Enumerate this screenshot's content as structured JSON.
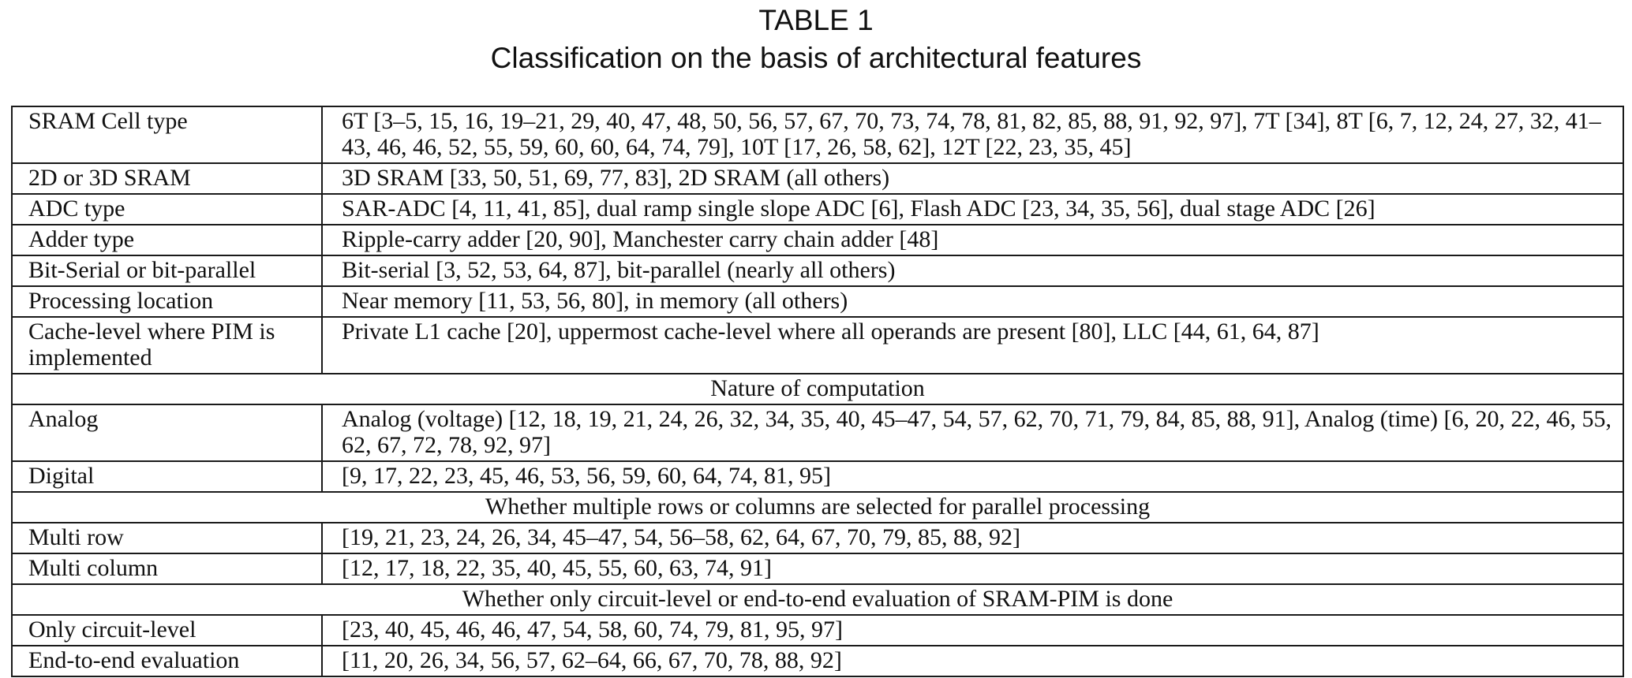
{
  "caption": {
    "label": "TABLE 1",
    "title": "Classification on the basis of architectural features"
  },
  "rows": [
    {
      "label": "SRAM Cell type",
      "value": "6T [3–5, 15, 16, 19–21, 29, 40, 47, 48, 50, 56, 57, 67, 70, 73, 74, 78, 81, 82, 85, 88, 91, 92, 97], 7T [34], 8T [6, 7, 12, 24, 27, 32, 41–43, 46, 46, 52, 55, 59, 60, 60, 64, 74, 79], 10T [17, 26, 58, 62], 12T [22, 23, 35, 45]"
    },
    {
      "label": "2D or 3D SRAM",
      "value": "3D SRAM [33, 50, 51, 69, 77, 83], 2D SRAM (all others)"
    },
    {
      "label": "ADC type",
      "value": "SAR-ADC [4, 11, 41, 85], dual ramp single slope ADC [6], Flash ADC [23, 34, 35, 56], dual stage ADC [26]"
    },
    {
      "label": "Adder type",
      "value": "Ripple-carry adder [20, 90], Manchester carry chain adder [48]"
    },
    {
      "label": "Bit-Serial or bit-parallel",
      "value": "Bit-serial [3, 52, 53, 64, 87], bit-parallel (nearly all others)"
    },
    {
      "label": "Processing location",
      "value": "Near memory [11, 53, 56, 80], in memory (all others)"
    },
    {
      "label": "Cache-level where PIM is implemented",
      "value": "Private L1 cache [20], uppermost cache-level where all operands are present [80], LLC [44, 61, 64, 87]"
    }
  ],
  "sections": [
    {
      "title": "Nature of computation",
      "rows": [
        {
          "label": "Analog",
          "value": "Analog (voltage) [12, 18, 19, 21, 24, 26, 32, 34, 35, 40, 45–47, 54, 57, 62, 70, 71, 79, 84, 85, 88, 91], Analog (time) [6, 20, 22, 46, 55, 62, 67, 72, 78, 92, 97]"
        },
        {
          "label": "Digital",
          "value": "[9, 17, 22, 23, 45, 46, 53, 56, 59, 60, 64, 74, 81, 95]"
        }
      ]
    },
    {
      "title": "Whether multiple rows or columns are selected for parallel processing",
      "rows": [
        {
          "label": "Multi row",
          "value": "[19, 21, 23, 24, 26, 34, 45–47, 54, 56–58, 62, 64, 67, 70, 79, 85, 88, 92]"
        },
        {
          "label": "Multi column",
          "value": "[12, 17, 18, 22, 35, 40, 45, 55, 60, 63, 74, 91]"
        }
      ]
    },
    {
      "title": "Whether only circuit-level or end-to-end evaluation of SRAM-PIM is done",
      "rows": [
        {
          "label": "Only circuit-level",
          "value": "[23, 40, 45, 46, 46, 47, 54, 58, 60, 74, 79, 81, 95, 97]"
        },
        {
          "label": "End-to-end evaluation",
          "value": "[11, 20, 26, 34, 56, 57, 62–64, 66, 67, 70, 78, 88, 92]"
        }
      ]
    }
  ]
}
